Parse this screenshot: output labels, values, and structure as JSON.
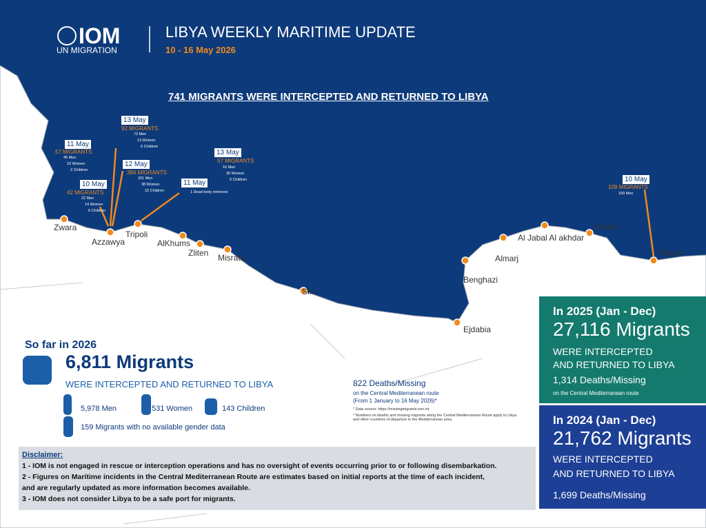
{
  "header": {
    "logo": "IOM",
    "logo_sub": "UN MIGRATION",
    "title": "LIBYA WEEKLY MARITIME UPDATE",
    "dates": "10 - 16 May 2026"
  },
  "headline": "741 MIGRANTS WERE INTERCEPTED AND RETURNED TO LIBYA",
  "events": [
    {
      "date": "11 May",
      "migrants": "57 MIGRANTS",
      "lines": [
        "45 Men",
        "10 Women",
        "2 Children"
      ]
    },
    {
      "date": "13 May",
      "migrants": "92 MIGRANTS",
      "lines": [
        "73 Men",
        "13 Women",
        "6 Children"
      ]
    },
    {
      "date": "12 May",
      "migrants": "384 MIGRANTS",
      "lines": [
        "331 Men",
        "38 Women",
        "15 Children"
      ]
    },
    {
      "date": "10 May",
      "migrants": "42 MIGRANTS",
      "lines": [
        "22 Men",
        "14 Women",
        "6 Children"
      ]
    },
    {
      "date": "11 May",
      "lines": [
        "1 Dead body retrieved"
      ]
    },
    {
      "date": "13 May",
      "migrants": "57 MIGRANTS",
      "lines": [
        "16 Men",
        "36 Women",
        "5 Children"
      ]
    },
    {
      "date": "10 May",
      "migrants": "109 MIGRANTS",
      "lines": [
        "109 Men"
      ]
    }
  ],
  "cities": [
    "Zwara",
    "Azzawya",
    "Tripoli",
    "AlKhums",
    "Zliten",
    "Misrata",
    "Sirt",
    "Benghazi",
    "Almarj",
    "Al Jabal Al akhdar",
    "Derna",
    "Tobruk",
    "Ejdabia"
  ],
  "so_far": {
    "title": "So far in 2026",
    "count": "6,811 Migrants",
    "sub": "WERE INTERCEPTED AND RETURNED TO LIBYA",
    "men": "5,978 Men",
    "women": "531 Women",
    "children": "143 Children",
    "unknown": "159 Migrants with no available gender data"
  },
  "deaths": {
    "main": "822 Deaths/Missing",
    "sub": "on the Central Mediterranean route",
    "period": "(From 1 January to 16 May 2026)*",
    "notes": [
      "*   Data source: https://missingmigrants.iom.int",
      "*   Numbers on deaths and missing migrants along the Central Mediterranean Route apply to Libya and other countries of departure in the Mediterranean area."
    ]
  },
  "disclaimer": {
    "title": "Disclaimer:",
    "items": [
      "1 - IOM is not engaged in rescue or interception operations and has no oversight of events occurring prior to or following disembarkation.",
      "2 - Figures on Maritime incidents in the Central Mediterranean Route are estimates based on initial reports at the time of each incident,",
      "and are regularly updated as more information becomes available.",
      "3 - IOM does not consider Libya to be a safe port for migrants."
    ]
  },
  "y2025": {
    "title": "In 2025 (Jan - Dec)",
    "count": "27,116 Migrants",
    "sub1": "WERE INTERCEPTED",
    "sub2": "AND RETURNED TO LIBYA",
    "deaths": "1,314 Deaths/Missing",
    "note": "on the Central Mediterranean route"
  },
  "y2024": {
    "title": "In 2024 (Jan - Dec)",
    "count": "21,762 Migrants",
    "sub1": "WERE INTERCEPTED",
    "sub2": "AND RETURNED TO LIBYA",
    "deaths": "1,699 Deaths/Missing"
  }
}
